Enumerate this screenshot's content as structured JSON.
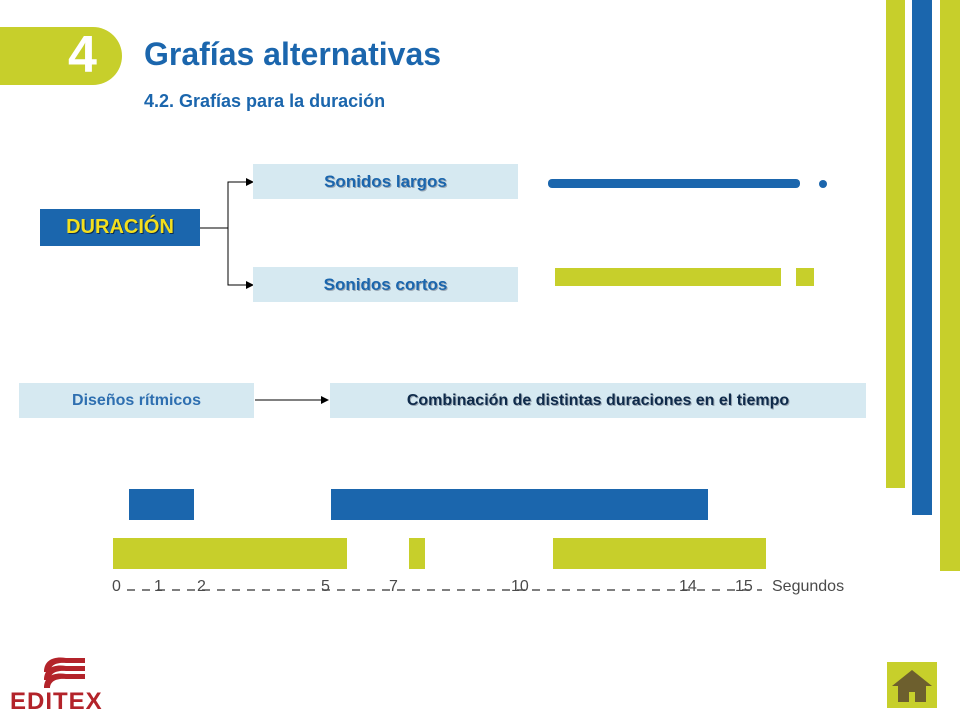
{
  "header": {
    "chapter_number": "4",
    "title": "Grafías alternativas",
    "subtitle": "4.2. Grafías para la duración"
  },
  "diagram": {
    "root": "DURACIÓN",
    "branches": [
      "Sonidos largos",
      "Sonidos cortos"
    ],
    "rhythm_source": "Diseños rítmicos",
    "rhythm_target": "Combinación de distintas duraciones en el tiempo"
  },
  "timeline": {
    "axis_labels": [
      "0",
      "1",
      "2",
      "5",
      "7",
      "10",
      "14",
      "15"
    ],
    "unit_label": "Segundos"
  },
  "logo": {
    "text": "EDITEX"
  },
  "colors": {
    "blue": "#1b66ad",
    "green": "#c7cf2b",
    "light_box": "#d6e9f1",
    "accent_yellow": "#f3df1e"
  },
  "icons": {
    "home": "home-icon",
    "logo": "editex-books-icon"
  }
}
